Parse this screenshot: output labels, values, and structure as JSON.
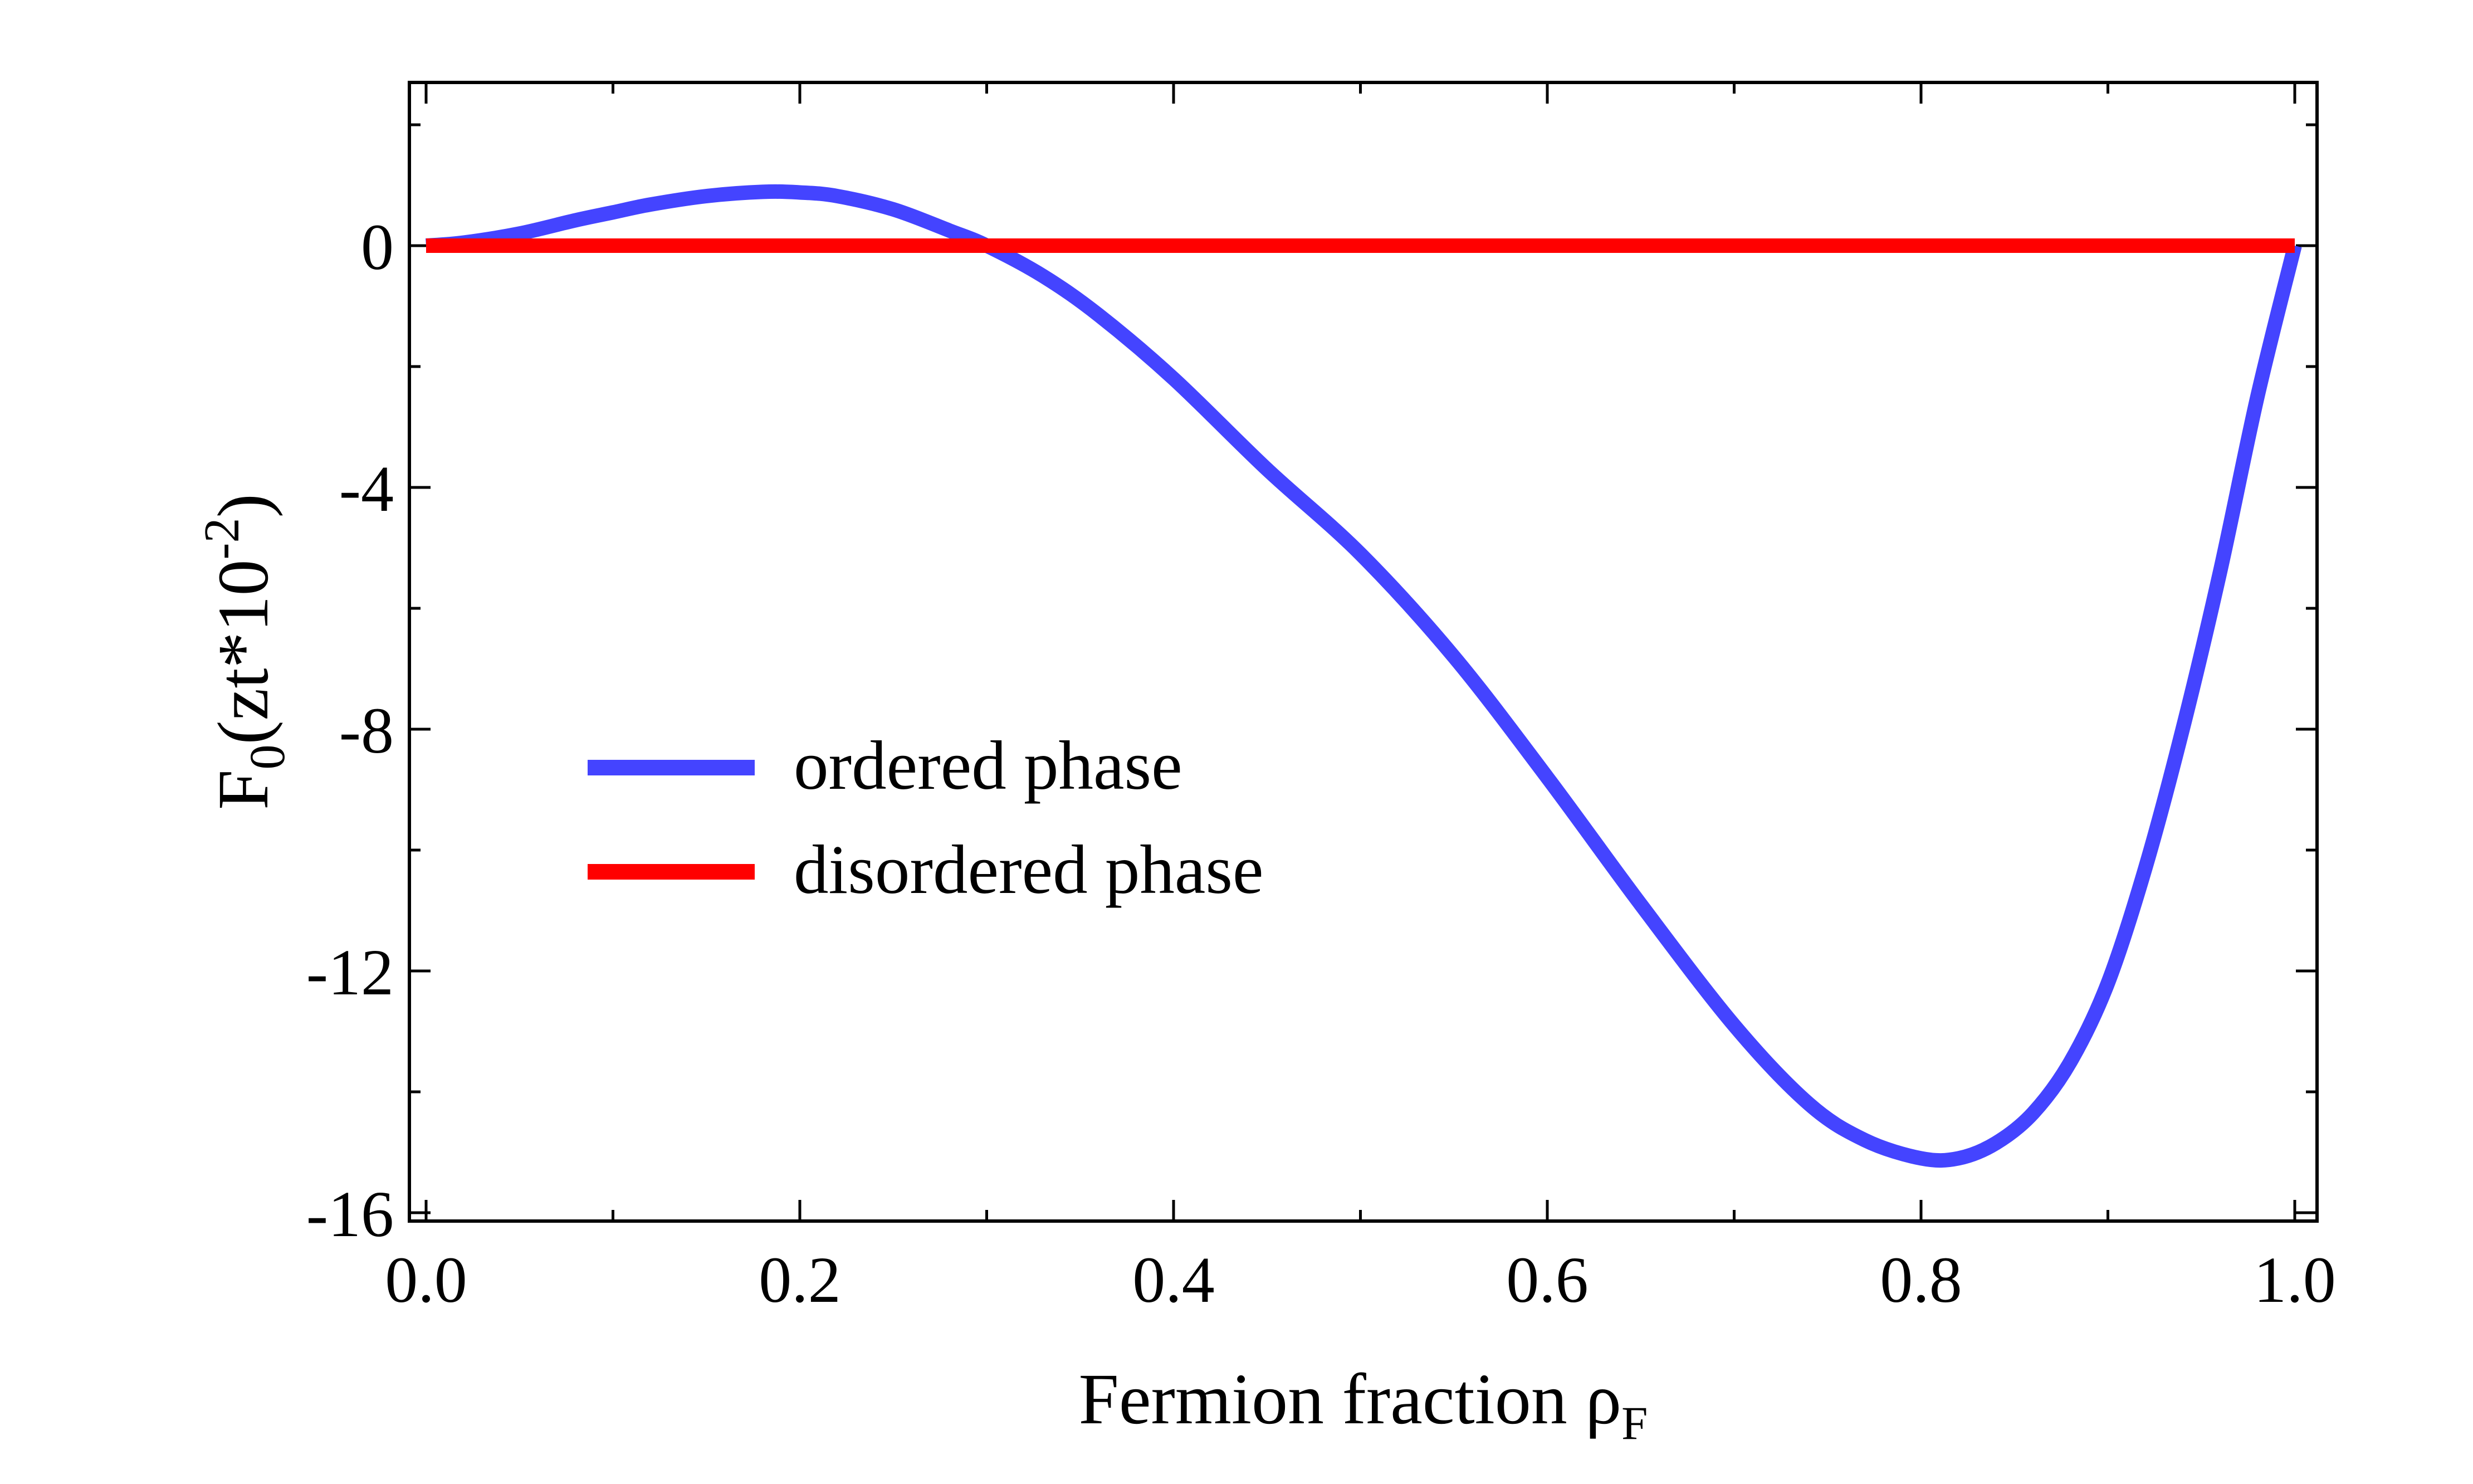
{
  "chart_data": {
    "type": "line",
    "title": "",
    "xlabel": {
      "main": "Fermion fraction ",
      "symbol": "ρ",
      "subscript": "F"
    },
    "ylabel": {
      "main": "F",
      "subscript": "0",
      "unit_open": "(zt*10",
      "superscript": "-2",
      "unit_close": ")"
    },
    "xlim": [
      0.0,
      1.0
    ],
    "ylim": [
      -16.0,
      2.7
    ],
    "xticks": [
      0.0,
      0.2,
      0.4,
      0.6,
      0.8,
      1.0
    ],
    "xtick_labels": [
      "0.0",
      "0.2",
      "0.4",
      "0.6",
      "0.8",
      "1.0"
    ],
    "yticks": [
      0,
      -4,
      -8,
      -12,
      -16
    ],
    "ytick_labels": [
      "0",
      "-4",
      "-8",
      "-12",
      "-16"
    ],
    "grid": false,
    "legend_position": "center-left",
    "series": [
      {
        "name": "ordered phase",
        "color": "#4444ff",
        "x": [
          0.0,
          0.02,
          0.05,
          0.08,
          0.1,
          0.12,
          0.15,
          0.18,
          0.2,
          0.22,
          0.25,
          0.28,
          0.3,
          0.33,
          0.36,
          0.4,
          0.45,
          0.5,
          0.55,
          0.6,
          0.65,
          0.7,
          0.74,
          0.77,
          0.8,
          0.82,
          0.84,
          0.86,
          0.88,
          0.9,
          0.92,
          0.94,
          0.96,
          0.98,
          1.0
        ],
        "y": [
          0.0,
          0.05,
          0.2,
          0.42,
          0.55,
          0.68,
          0.82,
          0.89,
          0.88,
          0.82,
          0.6,
          0.25,
          0.0,
          -0.5,
          -1.15,
          -2.2,
          -3.7,
          -5.1,
          -6.8,
          -8.8,
          -10.9,
          -12.9,
          -14.2,
          -14.8,
          -15.1,
          -15.1,
          -14.85,
          -14.35,
          -13.5,
          -12.2,
          -10.3,
          -8.0,
          -5.4,
          -2.5,
          0.0
        ]
      },
      {
        "name": "disordered phase",
        "color": "#ff0000",
        "x": [
          0.0,
          1.0
        ],
        "y": [
          0.0,
          0.0
        ]
      }
    ]
  }
}
